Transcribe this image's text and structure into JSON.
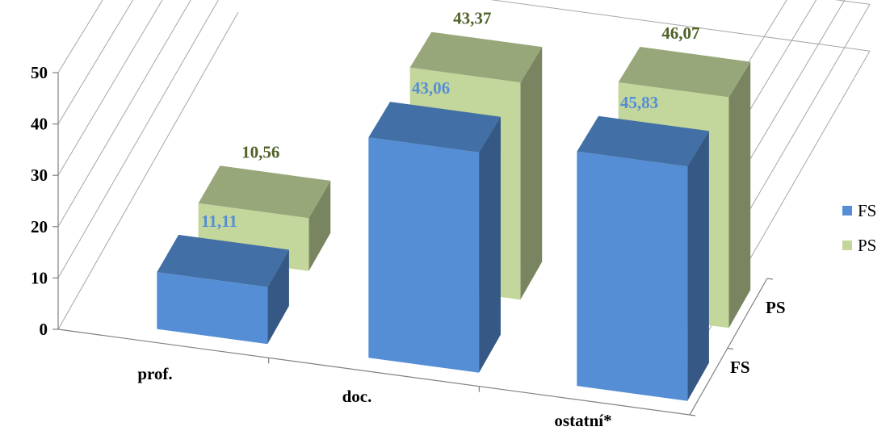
{
  "chart_data": {
    "type": "bar",
    "variant": "3d-column",
    "categories": [
      "prof.",
      "doc.",
      "ostatní*"
    ],
    "series": [
      {
        "name": "FS",
        "values": [
          11.11,
          43.06,
          45.83
        ],
        "labels": [
          "11,11",
          "43,06",
          "45,83"
        ],
        "color": "#558ED5",
        "label_color": "#558ED5"
      },
      {
        "name": "PS",
        "values": [
          10.56,
          43.37,
          46.07
        ],
        "labels": [
          "10,56",
          "43,37",
          "46,07"
        ],
        "color": "#C3D69B",
        "label_color": "#4F6228"
      }
    ],
    "depth_labels": [
      "FS",
      "PS"
    ],
    "y_ticks": [
      "0",
      "10",
      "20",
      "30",
      "40",
      "50"
    ],
    "ylim": [
      0,
      50
    ],
    "grid": true,
    "legend": "right",
    "title": "",
    "xlabel": "",
    "ylabel": ""
  }
}
